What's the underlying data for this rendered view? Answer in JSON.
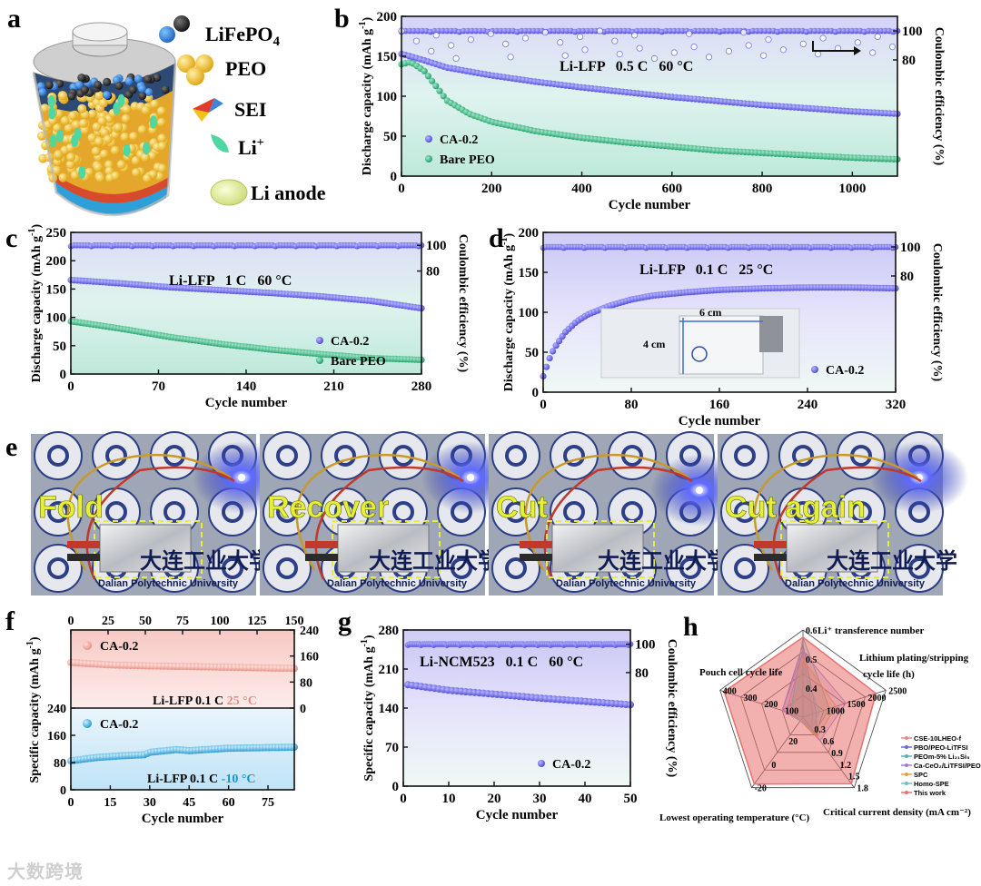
{
  "figure": {
    "panel_letters": [
      "a",
      "b",
      "c",
      "d",
      "e",
      "f",
      "g",
      "h"
    ],
    "watermark": "大数跨境"
  },
  "panel_a": {
    "legend": [
      {
        "label": "LiFePO",
        "sub": "4",
        "sup": "",
        "icon": "lifepo4-icon"
      },
      {
        "label": "PEO",
        "sub": "",
        "sup": "",
        "icon": "peo-icon"
      },
      {
        "label": "SEI",
        "sub": "",
        "sup": "",
        "icon": "sei-icon"
      },
      {
        "label": "Li",
        "sub": "",
        "sup": "+",
        "icon": "li-ion-icon"
      },
      {
        "label": "Li anode",
        "sub": "",
        "sup": "",
        "icon": "li-anode-icon"
      }
    ]
  },
  "panel_e": {
    "photos": [
      {
        "label": "Fold",
        "caption": "Dalian Polytechnic University"
      },
      {
        "label": "Recover",
        "caption": "Dalian Polytechnic University"
      },
      {
        "label": "Cut",
        "caption": "Dalian Polytechnic University"
      },
      {
        "label": "Cut again",
        "caption": "Dalian Polytechnic University"
      }
    ],
    "univ_cn": "大连工业大学",
    "colors": {
      "label": "#e6ee3a",
      "bg": "#223a8f",
      "glow": "#1a2cff"
    }
  },
  "chart_data": [
    {
      "id": "b",
      "type": "scatter",
      "xlabel": "Cycle number",
      "ylabel": "Discharge capacity (mAh g",
      "ylabel_sup": "-1",
      "ylabel_end": ")",
      "y2label": "Coulombic efficiency (%)",
      "xlim": [
        0,
        1100
      ],
      "ylim": [
        0,
        200
      ],
      "xticks": [
        0,
        200,
        400,
        600,
        800,
        1000
      ],
      "yticks": [
        0,
        50,
        100,
        150,
        200
      ],
      "y2ticks": [
        {
          "label": "100",
          "v": 100
        },
        {
          "label": "80",
          "v": 80
        }
      ],
      "y2lim": [
        0,
        110
      ],
      "annotation": "Li-LFP   0.5 C   60 °C",
      "legend": [
        "CA-0.2",
        "Bare PEO"
      ],
      "series": [
        {
          "name": "CA-0.2",
          "color": "#5f5cf0",
          "x": [
            0,
            50,
            100,
            200,
            300,
            400,
            500,
            600,
            700,
            800,
            900,
            1000,
            1100
          ],
          "values": [
            153,
            145,
            136,
            126,
            118,
            111,
            105,
            99,
            94,
            89,
            85,
            81,
            78
          ]
        },
        {
          "name": "Bare PEO",
          "color": "#2fb07f",
          "x": [
            0,
            20,
            50,
            80,
            100,
            150,
            200,
            300,
            400,
            500,
            600,
            700,
            800,
            900,
            1000,
            1100
          ],
          "values": [
            140,
            143,
            132,
            110,
            95,
            78,
            68,
            56,
            48,
            42,
            37,
            32,
            29,
            26,
            23,
            21
          ]
        }
      ],
      "ce": {
        "color": "#5f5cf0",
        "value": 100,
        "from": 0,
        "to": 1100
      }
    },
    {
      "id": "c",
      "type": "scatter",
      "xlabel": "Cycle number",
      "ylabel": "Discharge capacity (mAh g",
      "ylabel_sup": "-1",
      "ylabel_end": ")",
      "y2label": "Coulombic efficiency (%)",
      "xlim": [
        0,
        280
      ],
      "ylim": [
        0,
        250
      ],
      "xticks": [
        0,
        70,
        140,
        210,
        280
      ],
      "yticks": [
        0,
        50,
        100,
        150,
        200,
        250
      ],
      "y2ticks": [
        {
          "label": "100",
          "v": 100
        },
        {
          "label": "80",
          "v": 80
        }
      ],
      "y2lim": [
        0,
        110
      ],
      "annotation": "Li-LFP   1 C   60 °C",
      "legend": [
        "CA-0.2",
        "Bare PEO"
      ],
      "series": [
        {
          "name": "CA-0.2",
          "color": "#5f5cf0",
          "x": [
            0,
            40,
            80,
            120,
            160,
            200,
            240,
            280
          ],
          "values": [
            166,
            160,
            153,
            148,
            143,
            137,
            129,
            116
          ]
        },
        {
          "name": "Bare PEO",
          "color": "#2fb07f",
          "x": [
            0,
            10,
            40,
            80,
            120,
            160,
            200,
            240,
            280
          ],
          "values": [
            93,
            90,
            80,
            65,
            53,
            43,
            35,
            28,
            25
          ]
        }
      ],
      "ce": {
        "color": "#5f5cf0",
        "value": 100,
        "from": 0,
        "to": 280
      }
    },
    {
      "id": "d",
      "type": "scatter",
      "xlabel": "Cycle number",
      "ylabel": "Discharge capacity (mAh g",
      "ylabel_sup": "-1",
      "ylabel_end": ")",
      "y2label": "Coulombic efficiency (%)",
      "xlim": [
        0,
        320
      ],
      "ylim": [
        0,
        200
      ],
      "xticks": [
        0,
        80,
        160,
        240,
        320
      ],
      "yticks": [
        0,
        50,
        100,
        150,
        200
      ],
      "y2ticks": [
        {
          "label": "100",
          "v": 100
        },
        {
          "label": "80",
          "v": 80
        }
      ],
      "y2lim": [
        0,
        110
      ],
      "annotation": "Li-LFP   0.1 C   25 °C",
      "legend": [
        "CA-0.2"
      ],
      "inset_labels": {
        "width": "6 cm",
        "height": "4 cm"
      },
      "series": [
        {
          "name": "CA-0.2",
          "color": "#5f5cf0",
          "x": [
            0,
            5,
            10,
            20,
            30,
            40,
            60,
            80,
            100,
            130,
            160,
            200,
            240,
            280,
            320
          ],
          "values": [
            20,
            40,
            55,
            75,
            88,
            97,
            108,
            116,
            121,
            125,
            128,
            130,
            131,
            131,
            130
          ]
        }
      ],
      "ce": {
        "color": "#5f5cf0",
        "value": 100,
        "from": 0,
        "to": 320
      }
    },
    {
      "id": "f",
      "type": "scatter",
      "xlabel": "Cycle number",
      "ylabel": "Specific capacity (mAh g",
      "ylabel_sup": "-1",
      "ylabel_end": ")",
      "top": {
        "xlim": [
          0,
          150
        ],
        "ylim": [
          0,
          240
        ],
        "xticks": [
          0,
          25,
          50,
          75,
          100,
          125,
          150
        ],
        "yticks_right": [
          0,
          80,
          160,
          240
        ],
        "legend": "CA-0.2",
        "annotation": "Li-LFP   0.1 C",
        "temp": "25 °C",
        "series": {
          "name": "CA-0.2 25 °C",
          "color": "#f19b8f",
          "x": [
            0,
            25,
            50,
            75,
            100,
            125,
            150
          ],
          "values": [
            140,
            133,
            130,
            128,
            126,
            124,
            122
          ]
        }
      },
      "bottom": {
        "xlim": [
          0,
          85
        ],
        "ylim": [
          0,
          240
        ],
        "xticks": [
          0,
          15,
          30,
          45,
          60,
          75
        ],
        "yticks": [
          0,
          80,
          160,
          240
        ],
        "legend": "CA-0.2",
        "annotation": "Li-LFP   0.1 C",
        "temp": "-10 °C",
        "series": {
          "name": "CA-0.2 -10 °C",
          "color": "#29a4de",
          "x": [
            0,
            10,
            20,
            28,
            30,
            40,
            45,
            60,
            75,
            85
          ],
          "values": [
            85,
            95,
            100,
            103,
            110,
            118,
            115,
            122,
            124,
            125
          ]
        }
      }
    },
    {
      "id": "g",
      "type": "scatter",
      "xlabel": "Cycle number",
      "ylabel": "Specific capacity (mAh g",
      "ylabel_sup": "-1",
      "ylabel_end": ")",
      "y2label": "Coulombic efficiency (%)",
      "xlim": [
        0,
        50
      ],
      "ylim": [
        0,
        280
      ],
      "xticks": [
        0,
        10,
        20,
        30,
        40,
        50
      ],
      "yticks": [
        0,
        70,
        140,
        210,
        280
      ],
      "y2ticks": [
        {
          "label": "100",
          "v": 100
        },
        {
          "label": "80",
          "v": 80
        }
      ],
      "y2lim": [
        0,
        110
      ],
      "annotation": "Li-NCM523   0.1 C   60 °C",
      "legend": [
        "CA-0.2"
      ],
      "series": [
        {
          "name": "CA-0.2",
          "color": "#5f5cf0",
          "x": [
            1,
            10,
            20,
            30,
            40,
            50
          ],
          "values": [
            182,
            172,
            165,
            158,
            152,
            146
          ]
        }
      ],
      "ce": {
        "color": "#5f5cf0",
        "value": 100,
        "from": 1,
        "to": 50
      }
    },
    {
      "id": "h",
      "type": "radar",
      "axes": [
        {
          "label": "Li⁺ transference number",
          "ticks": [
            "0.6",
            "0.5",
            "0.4"
          ],
          "max": 0.6
        },
        {
          "label": "Lithium plating/stripping cycle life (h)",
          "ticks": [
            "2500",
            "2000",
            "1500",
            "1000"
          ],
          "max": 2500
        },
        {
          "label": "Critical current density (mA cm⁻²)",
          "ticks": [
            "1.8",
            "1.5",
            "1.2",
            "0.9",
            "0.6",
            "0.3"
          ],
          "max": 1.8
        },
        {
          "label": "Lowest operating temperature (°C)",
          "ticks": [
            "-20",
            "0",
            "20"
          ],
          "max": -20
        },
        {
          "label": "Pouch cell cycle life",
          "ticks": [
            "400",
            "300",
            "200",
            "100"
          ],
          "max": 400
        }
      ],
      "series": [
        {
          "name": "CSE-10LHEO-f",
          "color": "#e58a8a",
          "values": [
            0.45,
            300,
            0.3,
            40,
            80
          ]
        },
        {
          "name": "PBO/PEO-LiTFSI",
          "color": "#6a6ad8",
          "values": [
            0.5,
            400,
            0.5,
            50,
            100
          ]
        },
        {
          "name": "PEOm-5% Li₂₁Si₅",
          "color": "#5ab0b0",
          "values": [
            0.55,
            800,
            0.4,
            30,
            60
          ]
        },
        {
          "name": "Ca-CeO₂/LiTFSI/PEO",
          "color": "#9b7fd4",
          "values": [
            0.45,
            1300,
            0.6,
            45,
            100
          ]
        },
        {
          "name": "SPC",
          "color": "#e9a23b",
          "values": [
            0.4,
            1000,
            0.5,
            30,
            50
          ]
        },
        {
          "name": "Homo-SPE",
          "color": "#6cc2c8",
          "values": [
            0.35,
            500,
            0.3,
            40,
            60
          ]
        },
        {
          "name": "This work",
          "color": "#e8706e",
          "values": [
            0.55,
            2200,
            1.7,
            -18,
            380
          ]
        }
      ]
    }
  ]
}
